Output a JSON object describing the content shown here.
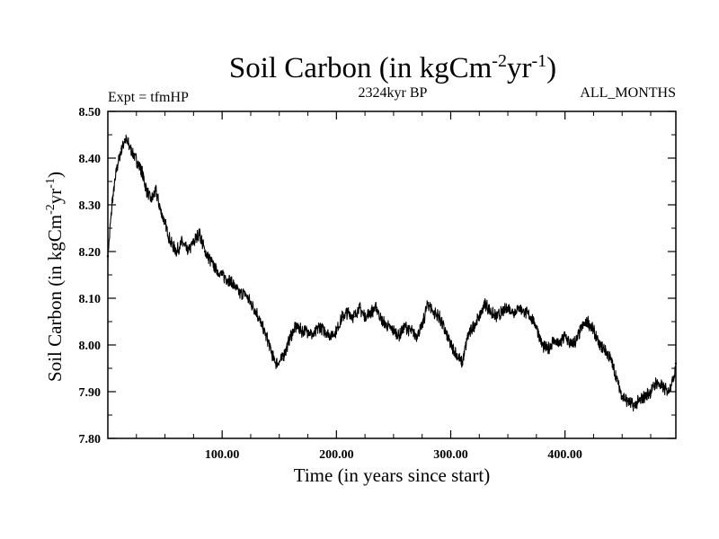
{
  "chart_data": {
    "type": "line",
    "title": "Soil Carbon (in kgCm",
    "title_sup1": "-2",
    "title_mid": "yr",
    "title_sup2": "-1",
    "title_end": ")",
    "expt_label": "Expt = tfmHP",
    "period_label": "2324kyr BP",
    "months_label": "ALL_MONTHS",
    "xlabel": "Time (in years since start)",
    "ylabel": "Soil Carbon (in kgCm",
    "ylabel_sup1": "-2",
    "ylabel_mid": "yr",
    "ylabel_sup2": "-1",
    "ylabel_end": ")",
    "xlim": [
      0,
      497
    ],
    "ylim": [
      7.8,
      8.5
    ],
    "x_ticks": [
      100,
      200,
      300,
      400
    ],
    "x_tick_labels": [
      "100.00",
      "200.00",
      "300.00",
      "400.00"
    ],
    "y_ticks": [
      7.8,
      7.9,
      8.0,
      8.1,
      8.2,
      8.3,
      8.4,
      8.5
    ],
    "y_tick_labels": [
      "7.80",
      "7.90",
      "8.00",
      "8.10",
      "8.20",
      "8.30",
      "8.40",
      "8.50"
    ],
    "band_halfwidth": 0.012,
    "series": [
      {
        "name": "Soil Carbon",
        "x": [
          0,
          4,
          8,
          12,
          15,
          18,
          22,
          26,
          30,
          34,
          38,
          42,
          46,
          50,
          55,
          60,
          65,
          70,
          75,
          80,
          85,
          90,
          95,
          100,
          105,
          110,
          115,
          120,
          125,
          130,
          135,
          140,
          145,
          148,
          152,
          156,
          160,
          165,
          170,
          175,
          180,
          185,
          190,
          195,
          200,
          205,
          210,
          215,
          220,
          225,
          230,
          235,
          240,
          245,
          250,
          255,
          260,
          265,
          270,
          275,
          280,
          285,
          290,
          295,
          300,
          305,
          310,
          315,
          320,
          325,
          330,
          335,
          340,
          345,
          350,
          355,
          360,
          365,
          370,
          375,
          380,
          385,
          390,
          395,
          400,
          405,
          410,
          415,
          420,
          425,
          430,
          435,
          440,
          445,
          450,
          455,
          460,
          465,
          470,
          475,
          480,
          485,
          490,
          495,
          497
        ],
        "y": [
          8.19,
          8.31,
          8.38,
          8.42,
          8.44,
          8.43,
          8.41,
          8.39,
          8.37,
          8.33,
          8.31,
          8.33,
          8.29,
          8.26,
          8.22,
          8.2,
          8.22,
          8.2,
          8.22,
          8.24,
          8.2,
          8.18,
          8.16,
          8.15,
          8.14,
          8.13,
          8.11,
          8.11,
          8.09,
          8.07,
          8.04,
          8.01,
          7.97,
          7.96,
          7.97,
          7.99,
          8.02,
          8.04,
          8.03,
          8.03,
          8.02,
          8.04,
          8.03,
          8.02,
          8.03,
          8.06,
          8.07,
          8.06,
          8.08,
          8.06,
          8.07,
          8.08,
          8.05,
          8.04,
          8.03,
          8.02,
          8.04,
          8.03,
          8.02,
          8.04,
          8.09,
          8.07,
          8.06,
          8.03,
          8.0,
          7.98,
          7.96,
          8.02,
          8.04,
          8.06,
          8.09,
          8.07,
          8.06,
          8.07,
          8.08,
          8.07,
          8.08,
          8.07,
          8.06,
          8.04,
          8.0,
          7.99,
          8.01,
          8.0,
          8.02,
          8.0,
          8.01,
          8.04,
          8.05,
          8.03,
          8.0,
          7.99,
          7.97,
          7.93,
          7.89,
          7.88,
          7.87,
          7.88,
          7.89,
          7.9,
          7.92,
          7.91,
          7.9,
          7.93,
          7.96
        ]
      }
    ]
  }
}
